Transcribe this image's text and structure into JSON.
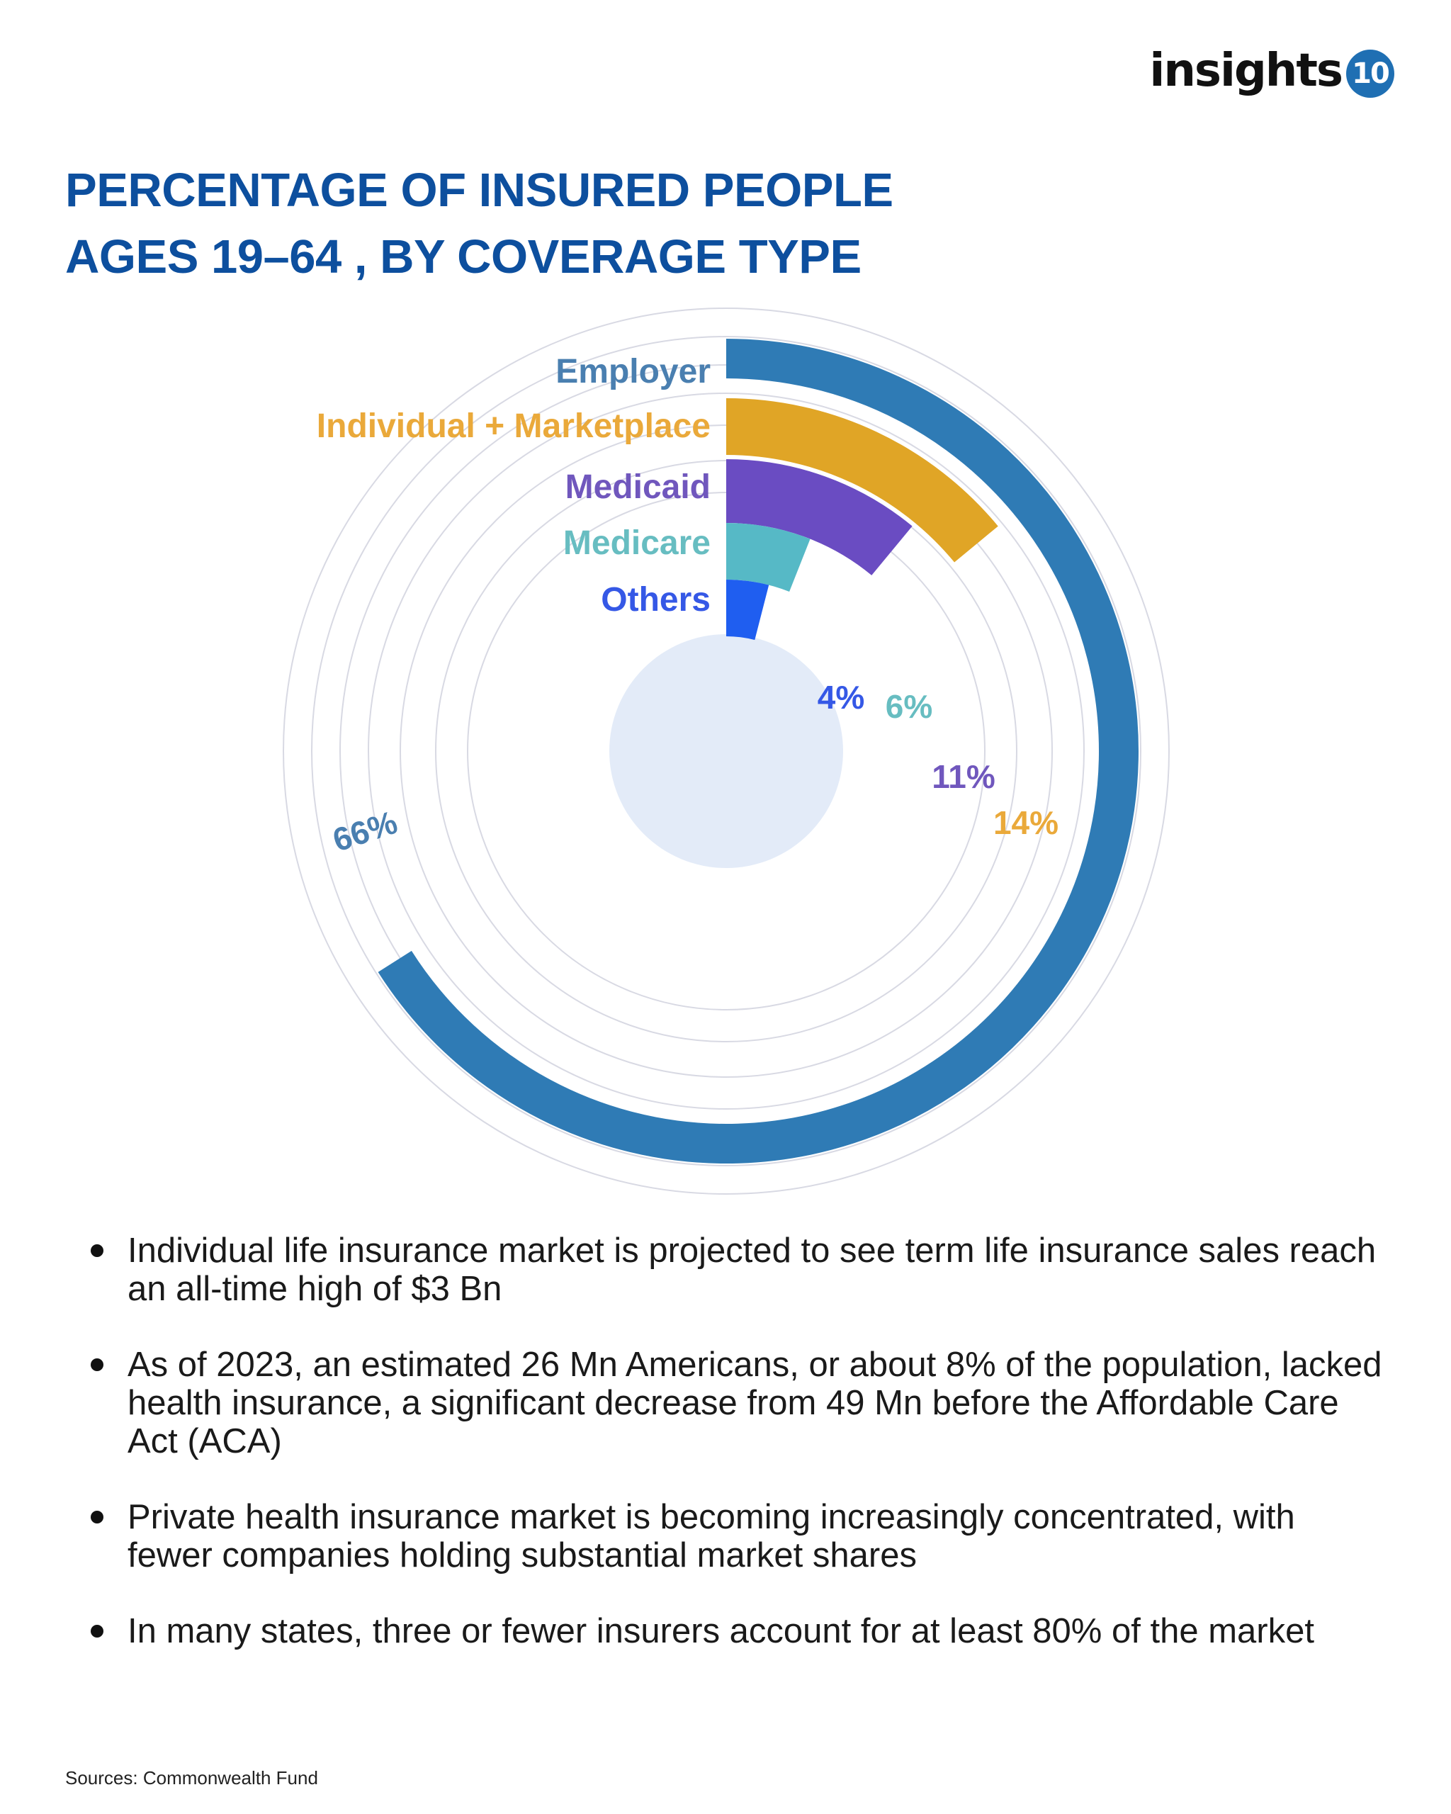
{
  "logo": {
    "word": "insights",
    "badge": "10"
  },
  "title": {
    "line1": "PERCENTAGE OF INSURED PEOPLE",
    "line2": "AGES 19–64 , BY COVERAGE TYPE"
  },
  "chart_data": {
    "type": "radial-bar",
    "title": "PERCENTAGE OF INSURED PEOPLE AGES 19–64 , BY COVERAGE TYPE",
    "max_value": 100,
    "categories": [
      "Employer",
      "Individual + Marketplace",
      "Medicaid",
      "Medicare",
      "Others"
    ],
    "values": [
      66,
      14,
      11,
      6,
      4
    ],
    "value_labels": [
      "66%",
      "14%",
      "11%",
      "6%",
      "4%"
    ],
    "colors": [
      "#2f7bb5",
      "#e0a526",
      "#6a4cc2",
      "#56b9c6",
      "#1f5ef0"
    ],
    "label_colors": [
      "#4a7fb0",
      "#eaa93a",
      "#7057bd",
      "#67bdc1",
      "#3558e6"
    ],
    "center_color": "#e3ebf8",
    "grid_color": "#d8d9e3"
  },
  "bullets": [
    "Individual life insurance market is projected to see term life insurance sales reach an all-time high of $3 Bn",
    "As of 2023, an estimated 26 Mn Americans, or about 8% of the population, lacked health insurance, a significant decrease from 49 Mn before the Affordable Care Act (ACA)",
    "Private health insurance market is becoming increasingly concentrated, with fewer companies holding substantial market shares",
    "In many states, three or fewer insurers account for at least 80% of the market"
  ],
  "source": "Sources: Commonwealth Fund"
}
